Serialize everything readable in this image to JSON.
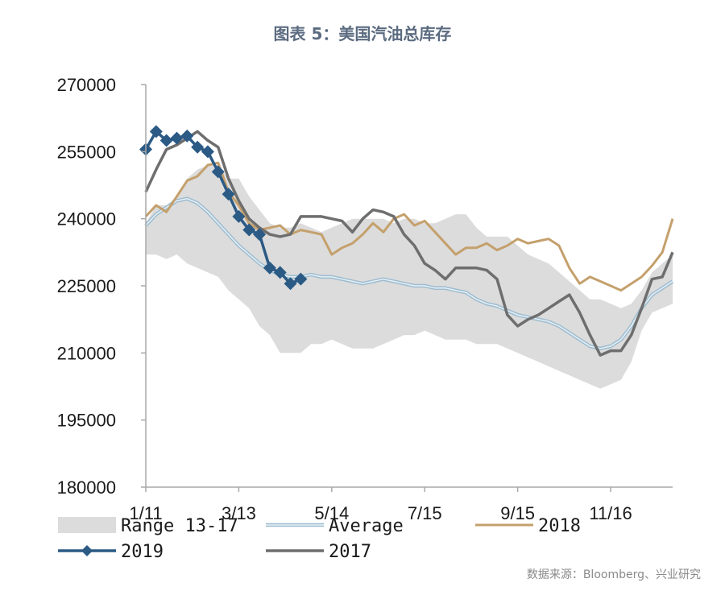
{
  "title": "图表 5：美国汽油总库存",
  "source": "数据来源：Bloomberg、兴业研究",
  "colors": {
    "range": "#dcdcdc",
    "average_outer": "#9dbcd0",
    "average_inner": "#e8f1f6",
    "s2018": "#c4a06c",
    "s2019": "#2b5a85",
    "s2017": "#6e6e6e",
    "axis": "#a9a9a9",
    "text": "#1a1a1a"
  },
  "chart_data": {
    "type": "line",
    "ylim": [
      180000,
      270000
    ],
    "yticks": [
      180000,
      195000,
      210000,
      225000,
      240000,
      255000,
      270000
    ],
    "ytick_labels": [
      "180000",
      "195000",
      "210000",
      "225000",
      "240000",
      "255000",
      "270000"
    ],
    "xticks": [
      {
        "week": 1,
        "label": "1/11"
      },
      {
        "week": 10,
        "label": "3/13"
      },
      {
        "week": 19,
        "label": "5/14"
      },
      {
        "week": 28,
        "label": "7/15"
      },
      {
        "week": 37,
        "label": "9/15"
      },
      {
        "week": 46,
        "label": "11/16"
      }
    ],
    "weeks": 52,
    "range": {
      "name": "Range 13-17",
      "upper": [
        239000,
        243000,
        243000,
        245000,
        249000,
        251000,
        252000,
        252000,
        249000,
        249000,
        245000,
        242000,
        239000,
        238000,
        238000,
        239000,
        238000,
        237000,
        238000,
        239000,
        240000,
        240000,
        240000,
        240000,
        239000,
        240000,
        240000,
        239000,
        239000,
        240000,
        241000,
        241000,
        238000,
        236000,
        236000,
        236000,
        234000,
        232000,
        231000,
        230000,
        228000,
        226000,
        224000,
        222000,
        222000,
        221000,
        220000,
        221000,
        224000,
        228000,
        230000,
        232000
      ],
      "lower": [
        232000,
        232000,
        231000,
        232000,
        230000,
        229000,
        228000,
        227000,
        224000,
        222000,
        220000,
        216000,
        214000,
        210000,
        210000,
        210000,
        212000,
        212000,
        213000,
        212000,
        211000,
        211000,
        211000,
        212000,
        213000,
        214000,
        214000,
        215000,
        214000,
        213000,
        213000,
        213000,
        212000,
        212000,
        212000,
        211000,
        210000,
        209000,
        208000,
        207000,
        206000,
        205000,
        204000,
        203000,
        202000,
        203000,
        204000,
        208000,
        215000,
        219000,
        220000,
        221000
      ]
    },
    "series": [
      {
        "name": "Average",
        "style": "average",
        "values": [
          238500,
          241000,
          242500,
          244000,
          244500,
          243500,
          241500,
          239000,
          236500,
          234000,
          232000,
          230000,
          228500,
          227500,
          227000,
          227000,
          227500,
          227000,
          227000,
          226500,
          226000,
          225500,
          226000,
          226500,
          226000,
          225500,
          225000,
          225000,
          224500,
          224500,
          224000,
          223500,
          222000,
          221000,
          220500,
          219500,
          218500,
          218000,
          217500,
          217000,
          216000,
          214500,
          213000,
          211500,
          211000,
          211500,
          213000,
          216000,
          220000,
          223000,
          224500,
          226000
        ]
      },
      {
        "name": "2018",
        "style": "plain",
        "values": [
          240500,
          243000,
          241500,
          245000,
          248500,
          249500,
          252000,
          252500,
          246000,
          243000,
          239000,
          237500,
          238000,
          238500,
          236500,
          237500,
          237000,
          236500,
          232000,
          233500,
          234500,
          236500,
          239000,
          237000,
          240000,
          241000,
          238500,
          239500,
          237000,
          234500,
          232000,
          233500,
          233500,
          234500,
          233000,
          234000,
          235500,
          234500,
          235000,
          235500,
          234000,
          229000,
          225500,
          227000,
          226000,
          225000,
          224000,
          225500,
          227000,
          229500,
          232500,
          240000
        ]
      },
      {
        "name": "2017",
        "style": "plain",
        "values": [
          246000,
          251000,
          255500,
          256500,
          258000,
          259500,
          257500,
          256000,
          249000,
          244000,
          240000,
          238000,
          236500,
          236000,
          236500,
          240500,
          240500,
          240500,
          240000,
          239500,
          237000,
          240000,
          242000,
          241500,
          240500,
          236500,
          234000,
          230000,
          228500,
          226500,
          229000,
          229000,
          229000,
          228500,
          226500,
          218500,
          216000,
          217500,
          218500,
          220000,
          221500,
          223000,
          219000,
          214000,
          209500,
          210500,
          210500,
          214000,
          220000,
          226500,
          227000,
          232500
        ]
      },
      {
        "name": "2019",
        "style": "marker",
        "values": [
          255500,
          259500,
          257500,
          258000,
          258500,
          256000,
          255000,
          250500,
          245500,
          240500,
          237500,
          236500,
          229000,
          228000,
          225500,
          226500
        ]
      }
    ]
  },
  "legend": {
    "items": [
      {
        "label": "Range 13-17",
        "style": "range"
      },
      {
        "label": "Average",
        "style": "average"
      },
      {
        "label": "2018",
        "style": "s2018"
      },
      {
        "label": "2019",
        "style": "s2019"
      },
      {
        "label": "2017",
        "style": "s2017"
      }
    ]
  }
}
